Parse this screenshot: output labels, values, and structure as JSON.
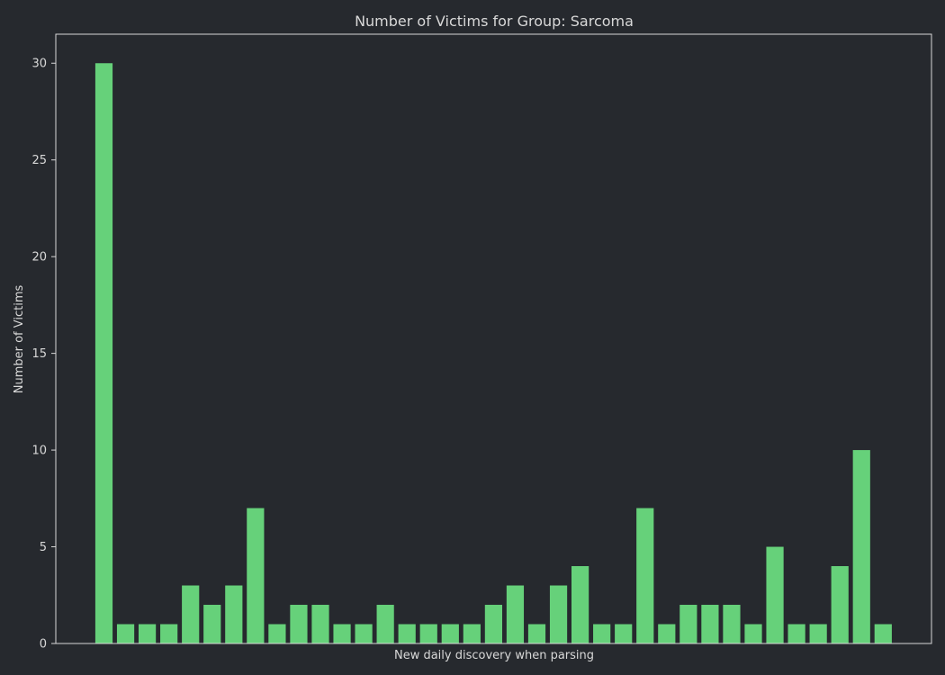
{
  "chart_data": {
    "type": "bar",
    "title": "Number of Victims for Group: Sarcoma",
    "xlabel": "New daily discovery when parsing",
    "ylabel": "Number of Victims",
    "ylim": [
      0,
      31.5
    ],
    "yticks": [
      0,
      5,
      10,
      15,
      20,
      25,
      30
    ],
    "grid": false,
    "x_tick_labels_visible": false,
    "values": [
      30,
      1,
      1,
      1,
      3,
      2,
      3,
      7,
      1,
      2,
      2,
      1,
      1,
      2,
      1,
      1,
      1,
      1,
      2,
      3,
      1,
      3,
      4,
      1,
      1,
      7,
      1,
      2,
      2,
      2,
      1,
      5,
      1,
      1,
      4,
      10,
      1
    ],
    "colors": {
      "background": "#26292e",
      "bar": "#66d17a",
      "axes": "#d8d8d8",
      "text": "#d8d8d8"
    }
  }
}
